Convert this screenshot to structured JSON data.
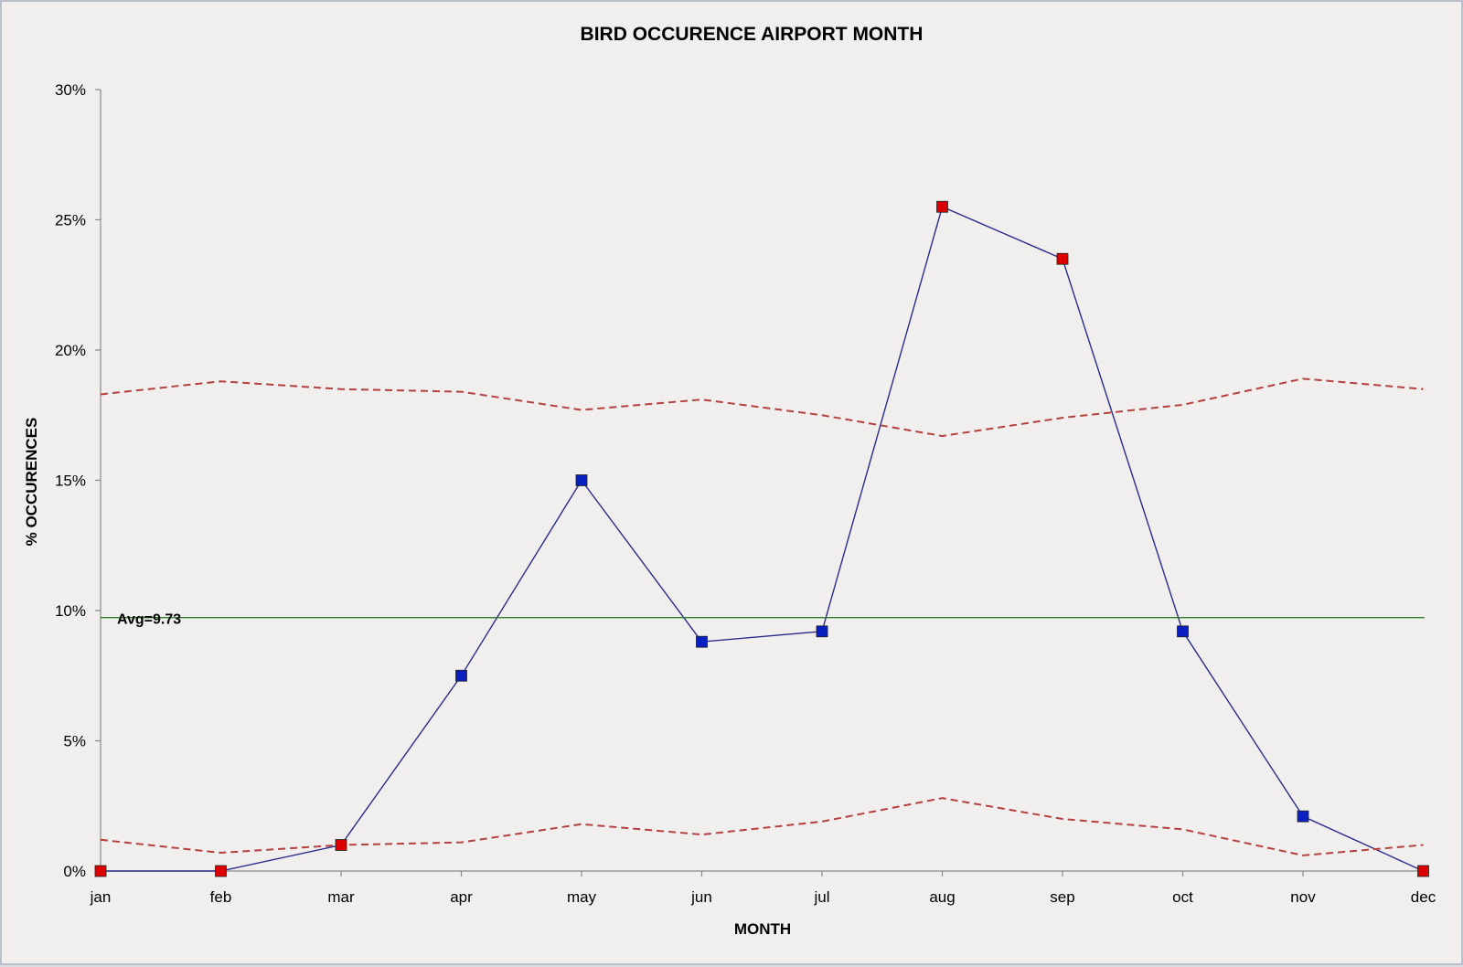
{
  "chart_data": {
    "type": "line",
    "title": "BIRD OCCURENCE AIRPORT MONTH",
    "xlabel": "MONTH",
    "ylabel": "% OCCURENCES",
    "categories": [
      "jan",
      "feb",
      "mar",
      "apr",
      "may",
      "jun",
      "jul",
      "aug",
      "sep",
      "oct",
      "nov",
      "dec"
    ],
    "yticks": [
      "0%",
      "5%",
      "10%",
      "15%",
      "20%",
      "25%",
      "30%"
    ],
    "ylim": [
      0,
      30
    ],
    "grid": false,
    "series": [
      {
        "values": [
          0.0,
          0.0,
          1.0,
          7.5,
          15.0,
          8.8,
          9.2,
          25.5,
          23.5,
          9.2,
          2.1,
          0.0
        ],
        "point_colors": [
          "#dd0000",
          "#dd0000",
          "#dd0000",
          "#0a1fbf",
          "#0a1fbf",
          "#0a1fbf",
          "#0a1fbf",
          "#dd0000",
          "#dd0000",
          "#0a1fbf",
          "#0a1fbf",
          "#dd0000"
        ],
        "line_color": "#2b2b8c",
        "style": "solid-with-square-markers"
      },
      {
        "values": [
          18.3,
          18.8,
          18.5,
          18.4,
          17.7,
          18.1,
          17.5,
          16.7,
          17.4,
          17.9,
          18.9,
          18.5
        ],
        "color": "#b54040",
        "style": "dashed"
      },
      {
        "values": [
          1.2,
          0.7,
          1.0,
          1.1,
          1.8,
          1.4,
          1.9,
          2.8,
          2.0,
          1.6,
          0.6,
          1.0
        ],
        "color": "#b54040",
        "style": "dashed"
      }
    ],
    "reference_line": {
      "value": 9.73,
      "label": "Avg=9.73",
      "color": "#2e7d2e"
    }
  }
}
